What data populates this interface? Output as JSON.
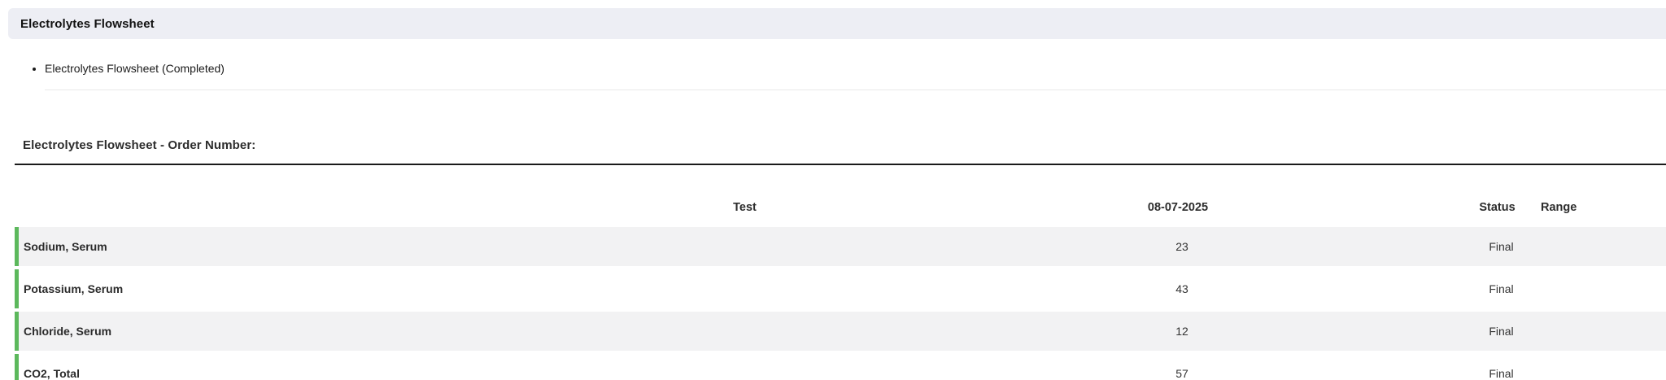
{
  "header": {
    "title": "Electrolytes Flowsheet"
  },
  "list": {
    "items": [
      {
        "label": "Electrolytes Flowsheet (Completed)"
      }
    ]
  },
  "section": {
    "heading": "Electrolytes Flowsheet - Order Number:"
  },
  "table": {
    "columns": {
      "test": "Test",
      "date": "08-07-2025",
      "status": "Status",
      "range": "Range"
    },
    "rows": [
      {
        "test": "Sodium, Serum",
        "value": "23",
        "status": "Final",
        "range": ""
      },
      {
        "test": "Potassium, Serum",
        "value": "43",
        "status": "Final",
        "range": ""
      },
      {
        "test": "Chloride, Serum",
        "value": "12",
        "status": "Final",
        "range": ""
      },
      {
        "test": "CO2, Total",
        "value": "57",
        "status": "Final",
        "range": ""
      }
    ]
  },
  "colors": {
    "accent_green": "#5cb85c",
    "title_bar_bg": "#edeef4",
    "row_alt_bg": "#f2f2f3",
    "divider_dark": "#1a1a1a",
    "divider_light": "#e9e9e9"
  }
}
